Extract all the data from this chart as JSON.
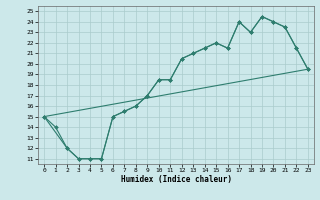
{
  "title": "",
  "xlabel": "Humidex (Indice chaleur)",
  "bg_color": "#cce8ea",
  "grid_color": "#aacccc",
  "line_color": "#2e7d6e",
  "xlim": [
    -0.5,
    23.5
  ],
  "ylim": [
    10.5,
    25.5
  ],
  "xticks": [
    0,
    1,
    2,
    3,
    4,
    5,
    6,
    7,
    8,
    9,
    10,
    11,
    12,
    13,
    14,
    15,
    16,
    17,
    18,
    19,
    20,
    21,
    22,
    23
  ],
  "yticks": [
    11,
    12,
    13,
    14,
    15,
    16,
    17,
    18,
    19,
    20,
    21,
    22,
    23,
    24,
    25
  ],
  "line1_x": [
    0,
    1,
    2,
    3,
    4,
    5,
    6,
    7,
    8,
    9,
    10,
    11,
    12,
    13,
    14,
    15,
    16,
    17,
    18,
    19,
    20,
    21,
    22,
    23
  ],
  "line1_y": [
    15,
    14,
    12,
    11,
    11,
    11,
    15,
    15.5,
    16,
    17,
    18.5,
    18.5,
    20.5,
    21,
    21.5,
    22,
    21.5,
    24,
    23,
    24.5,
    24,
    23.5,
    21.5,
    19.5
  ],
  "line2_x": [
    0,
    2,
    3,
    4,
    5,
    6,
    7,
    8,
    9,
    10,
    11,
    12,
    13,
    14,
    15,
    16,
    17,
    18,
    19,
    20,
    21,
    22,
    23
  ],
  "line2_y": [
    15,
    12,
    11,
    11,
    11,
    15,
    15.5,
    16,
    17,
    18.5,
    18.5,
    20.5,
    21,
    21.5,
    22,
    21.5,
    24,
    23,
    24.5,
    24,
    23.5,
    21.5,
    19.5
  ],
  "line3_x": [
    0,
    23
  ],
  "line3_y": [
    15,
    19.5
  ]
}
